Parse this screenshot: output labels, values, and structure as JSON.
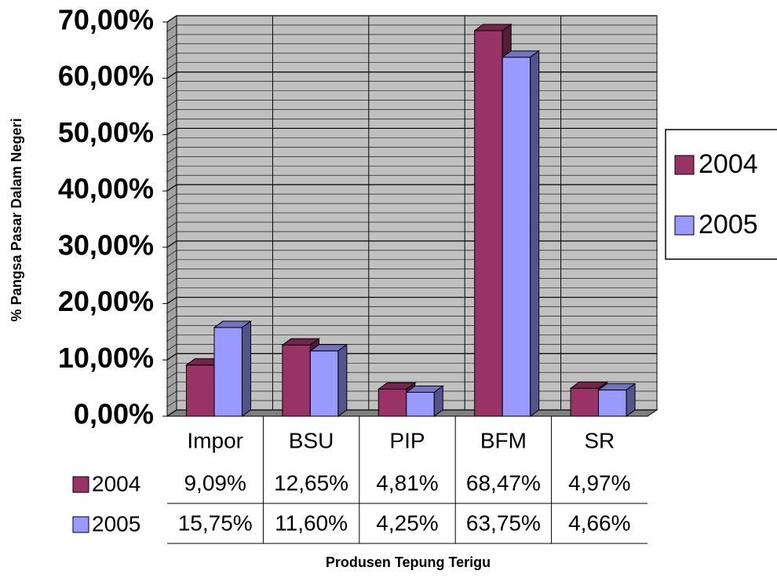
{
  "chart_data": {
    "type": "bar",
    "y_label": "% Pangsa Pasar Dalam Negeri",
    "x_label": "Produsen Tepung Terigu",
    "categories": [
      "Impor",
      "BSU",
      "PIP",
      "BFM",
      "SR"
    ],
    "series": [
      {
        "name": "2004",
        "color": "#993366",
        "values": [
          9.09,
          12.65,
          4.81,
          68.47,
          4.97
        ],
        "value_labels": [
          "9,09%",
          "12,65%",
          "4,81%",
          "68,47%",
          "4,97%"
        ]
      },
      {
        "name": "2005",
        "color": "#9999ff",
        "values": [
          15.75,
          11.6,
          4.25,
          63.75,
          4.66
        ],
        "value_labels": [
          "15,75%",
          "11,60%",
          "4,25%",
          "63,75%",
          "4,66%"
        ]
      }
    ],
    "ylim": [
      0,
      70
    ],
    "yticks": [
      {
        "value": 0,
        "label": "0,00%"
      },
      {
        "value": 10,
        "label": "10,00%"
      },
      {
        "value": 20,
        "label": "20,00%"
      },
      {
        "value": 30,
        "label": "30,00%"
      },
      {
        "value": 40,
        "label": "40,00%"
      },
      {
        "value": 50,
        "label": "50,00%"
      },
      {
        "value": 60,
        "label": "60,00%"
      },
      {
        "value": 70,
        "label": "70,00%"
      }
    ],
    "grid": true,
    "legend": "right"
  }
}
